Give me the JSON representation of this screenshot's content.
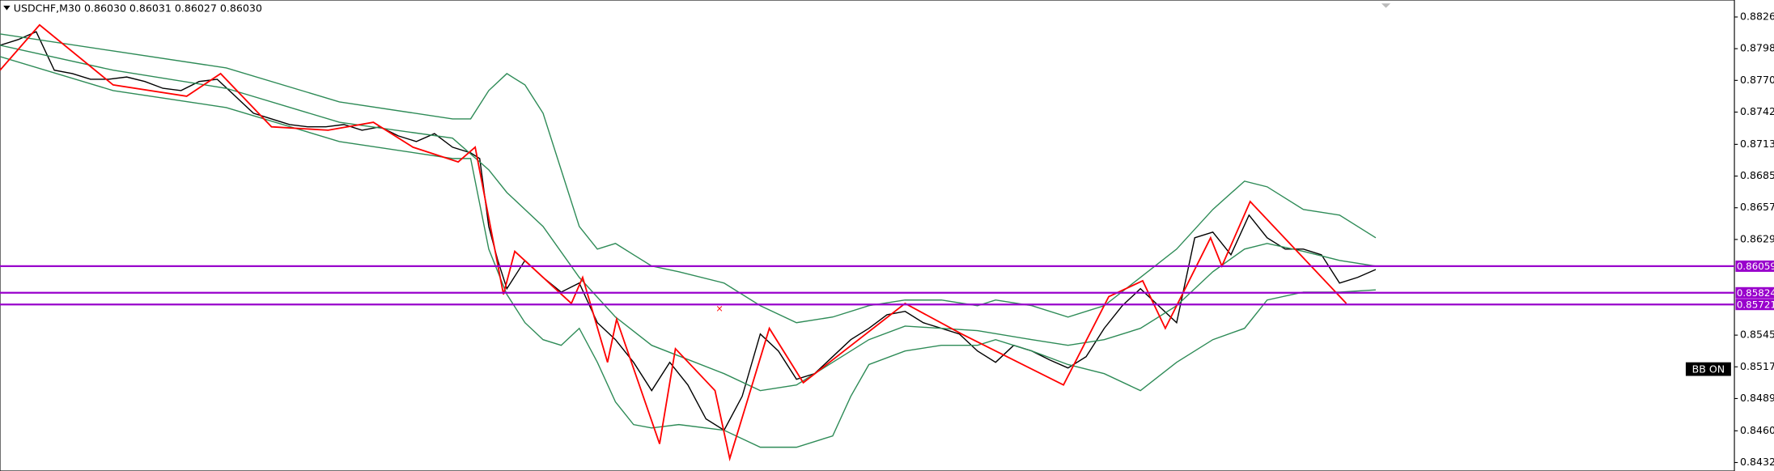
{
  "chart_data": {
    "type": "line",
    "title": "USDCHF,M30  0.86030 0.86031 0.86027 0.86030",
    "badge": "BB ON",
    "xlim": [
      0,
      383.25
    ],
    "ylim": [
      0.8425,
      0.8841
    ],
    "yticks": [
      {
        "value": 0.8826,
        "label": "0.88260"
      },
      {
        "value": 0.8798,
        "label": "0.87980"
      },
      {
        "value": 0.877,
        "label": "0.87700"
      },
      {
        "value": 0.8742,
        "label": "0.87420"
      },
      0.87135,
      0.86855,
      0.86575,
      0.86295,
      {
        "value": 0.8545,
        "label": "0.85450"
      },
      {
        "value": 0.8517,
        "label": "0.85170"
      },
      {
        "value": 0.8489,
        "label": "0.84890"
      },
      0.84605,
      0.84325
    ],
    "levels": [
      0.86059,
      0.85824,
      0.85721
    ],
    "level_color": "#9900cc",
    "series": [
      {
        "color": "#000000",
        "width": 1,
        "x": [
          0,
          4,
          8,
          12,
          16,
          20,
          24,
          28,
          32,
          36,
          40,
          44,
          48,
          52,
          56,
          60,
          64,
          68,
          72,
          76,
          80,
          84,
          88,
          92,
          96,
          100,
          104,
          106,
          108,
          110,
          112,
          116,
          120,
          124,
          128,
          132,
          136,
          140,
          144,
          148,
          152,
          156,
          160,
          164,
          168,
          172,
          176,
          180,
          184,
          188,
          192,
          196,
          200,
          204,
          208,
          212,
          216,
          220,
          224,
          228,
          232,
          236,
          240,
          244,
          248,
          252,
          256,
          260,
          264,
          268,
          272,
          276,
          280,
          284,
          288,
          292,
          296,
          300,
          304
        ],
        "values": [
          0.8801,
          0.8806,
          0.8813,
          0.8779,
          0.8776,
          0.8771,
          0.8771,
          0.8773,
          0.8769,
          0.8763,
          0.8761,
          0.8769,
          0.8771,
          0.8756,
          0.8741,
          0.8736,
          0.8731,
          0.8729,
          0.8729,
          0.8731,
          0.8726,
          0.8729,
          0.8721,
          0.8716,
          0.8723,
          0.8711,
          0.8706,
          0.8701,
          0.8641,
          0.8611,
          0.8586,
          0.8611,
          0.8596,
          0.8583,
          0.8591,
          0.8556,
          0.8541,
          0.8521,
          0.8496,
          0.8521,
          0.8501,
          0.8471,
          0.8461,
          0.8491,
          0.8546,
          0.8531,
          0.8506,
          0.8511,
          0.8526,
          0.8541,
          0.8551,
          0.8563,
          0.8566,
          0.8556,
          0.8551,
          0.8546,
          0.8531,
          0.8521,
          0.8536,
          0.8531,
          0.8523,
          0.8516,
          0.8526,
          0.8551,
          0.8571,
          0.8586,
          0.8571,
          0.8556,
          0.8631,
          0.8636,
          0.8616,
          0.8651,
          0.8631,
          0.8621,
          0.8621,
          0.8616,
          0.8591,
          0.8596,
          0.8603
        ]
      },
      {
        "color": "#2e8b57",
        "width": 1,
        "x": [
          0,
          25,
          50,
          75,
          100,
          104,
          108,
          112,
          116,
          120,
          124,
          128,
          132,
          136,
          140,
          144,
          150,
          160,
          168,
          176,
          184,
          192,
          200,
          208,
          216,
          220,
          228,
          236,
          244,
          252,
          260,
          268,
          275,
          280,
          288,
          296,
          304
        ],
        "values": [
          0.8811,
          0.8796,
          0.8781,
          0.8751,
          0.8736,
          0.8736,
          0.8761,
          0.8776,
          0.8766,
          0.8741,
          0.8691,
          0.8641,
          0.8621,
          0.8626,
          0.8616,
          0.8606,
          0.8601,
          0.8591,
          0.8571,
          0.8556,
          0.8561,
          0.8571,
          0.8576,
          0.8576,
          0.8571,
          0.8576,
          0.8571,
          0.8561,
          0.8571,
          0.8596,
          0.8621,
          0.8656,
          0.8681,
          0.8676,
          0.8656,
          0.8651,
          0.8631
        ]
      },
      {
        "color": "#2e8b57",
        "width": 1,
        "x": [
          0,
          25,
          50,
          75,
          100,
          108,
          112,
          120,
          128,
          136,
          144,
          160,
          168,
          176,
          184,
          192,
          200,
          216,
          228,
          236,
          244,
          252,
          260,
          268,
          275,
          280,
          288,
          296,
          304
        ],
        "values": [
          0.8801,
          0.8779,
          0.8763,
          0.8733,
          0.8719,
          0.8691,
          0.8671,
          0.8641,
          0.8596,
          0.8561,
          0.8536,
          0.8511,
          0.8496,
          0.8501,
          0.8521,
          0.8541,
          0.8553,
          0.8549,
          0.8541,
          0.8536,
          0.8541,
          0.8551,
          0.8571,
          0.8601,
          0.8621,
          0.8626,
          0.8619,
          0.8611,
          0.8606
        ]
      },
      {
        "color": "#2e8b57",
        "width": 1,
        "x": [
          0,
          25,
          50,
          75,
          100,
          104,
          108,
          112,
          116,
          120,
          124,
          128,
          132,
          136,
          140,
          144,
          150,
          160,
          168,
          176,
          184,
          188,
          192,
          200,
          208,
          216,
          220,
          228,
          236,
          244,
          252,
          260,
          268,
          275,
          280,
          288,
          296,
          304
        ],
        "values": [
          0.8791,
          0.8761,
          0.8746,
          0.8716,
          0.8701,
          0.8701,
          0.8621,
          0.8581,
          0.8556,
          0.8541,
          0.8536,
          0.8551,
          0.8521,
          0.8486,
          0.8466,
          0.8463,
          0.8466,
          0.8461,
          0.8446,
          0.8446,
          0.8456,
          0.8491,
          0.8519,
          0.8531,
          0.8536,
          0.8536,
          0.8541,
          0.8531,
          0.8519,
          0.8511,
          0.8496,
          0.8521,
          0.8541,
          0.8551,
          0.8576,
          0.8583,
          0.8583,
          0.8585
        ]
      },
      {
        "color": "#ff0000",
        "width": 1.3,
        "x": [
          0,
          8.75,
          25,
          41.25,
          48.75,
          60,
          72.5,
          82.5,
          91.25,
          101.25,
          105,
          111.25,
          113.75,
          126.25,
          128.75,
          134.25,
          136.25,
          145.75,
          149.25,
          158,
          161.25,
          170,
          177.5,
          200,
          212.5,
          235,
          245,
          252.5,
          257.5,
          267.5,
          270,
          276.25,
          297.5
        ],
        "values": [
          0.8779,
          0.8819,
          0.8766,
          0.8756,
          0.8776,
          0.8729,
          0.8726,
          0.8733,
          0.8711,
          0.8698,
          0.8711,
          0.8581,
          0.8619,
          0.8573,
          0.8596,
          0.8521,
          0.8559,
          0.8449,
          0.8533,
          0.8496,
          0.8436,
          0.8551,
          0.8503,
          0.8573,
          0.8546,
          0.8501,
          0.8579,
          0.8593,
          0.8551,
          0.8631,
          0.8606,
          0.8663,
          0.8573
        ]
      }
    ]
  }
}
